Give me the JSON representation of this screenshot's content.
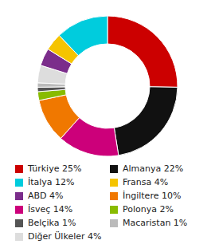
{
  "chart_data": {
    "type": "pie",
    "categories": [
      "Türkiye",
      "Almanya",
      "İsveç",
      "İngiltere",
      "Polonya",
      "Belçika",
      "Macaristan",
      "Diğer Ülkeler",
      "ABD",
      "Fransa",
      "İtalya"
    ],
    "values": [
      25,
      22,
      14,
      10,
      2,
      1,
      1,
      4,
      4,
      4,
      12
    ],
    "colors": [
      "#cc0000",
      "#111111",
      "#cc007a",
      "#f07800",
      "#88bb00",
      "#555555",
      "#bbbbbb",
      "#dddddd",
      "#7b2d8b",
      "#f5c400",
      "#00ccdd"
    ],
    "legend": "bottom",
    "legend_items": [
      {
        "label": "Türkiye 25%",
        "color": "#cc0000"
      },
      {
        "label": "Almanya 22%",
        "color": "#111111"
      },
      {
        "label": "İtalya 12%",
        "color": "#00ccdd"
      },
      {
        "label": "Fransa 4%",
        "color": "#f5c400"
      },
      {
        "label": "ABD 4%",
        "color": "#7b2d8b"
      },
      {
        "label": "İngiltere 10%",
        "color": "#f07800"
      },
      {
        "label": "İsveç 14%",
        "color": "#cc007a"
      },
      {
        "label": "Polonya 2%",
        "color": "#88bb00"
      },
      {
        "label": "Belçika 1%",
        "color": "#555555"
      },
      {
        "label": "Macaristan 1%",
        "color": "#bbbbbb"
      },
      {
        "label": "Diğer Ülkeler 4%",
        "color": "#dddddd"
      }
    ]
  }
}
